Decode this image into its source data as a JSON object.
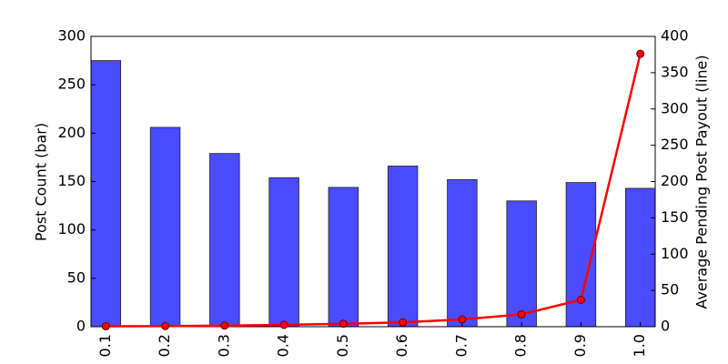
{
  "chart_data": {
    "type": "bar_line",
    "categories": [
      "0.1",
      "0.2",
      "0.3",
      "0.4",
      "0.5",
      "0.6",
      "0.7",
      "0.8",
      "0.9",
      "1.0"
    ],
    "ylabel": "Post Count (bar)",
    "y2label": "Average Pending Post Payout (line)",
    "series": [
      {
        "name": "Post Count",
        "type": "bar",
        "color": "#4b4bff",
        "values": [
          275,
          206,
          179,
          154,
          144,
          166,
          152,
          130,
          149,
          143
        ]
      },
      {
        "name": "Average Pending Post Payout",
        "type": "line",
        "axis": "y2",
        "color": "#ff0000",
        "values": [
          0.5,
          0.8,
          1.5,
          2.5,
          4,
          6,
          10,
          17,
          37,
          376
        ]
      }
    ],
    "ylim": [
      0,
      300
    ],
    "yticks": [
      0,
      50,
      100,
      150,
      200,
      250,
      300
    ],
    "y2lim": [
      0,
      400
    ],
    "y2ticks": [
      0,
      50,
      100,
      150,
      200,
      250,
      300,
      350,
      400
    ]
  }
}
